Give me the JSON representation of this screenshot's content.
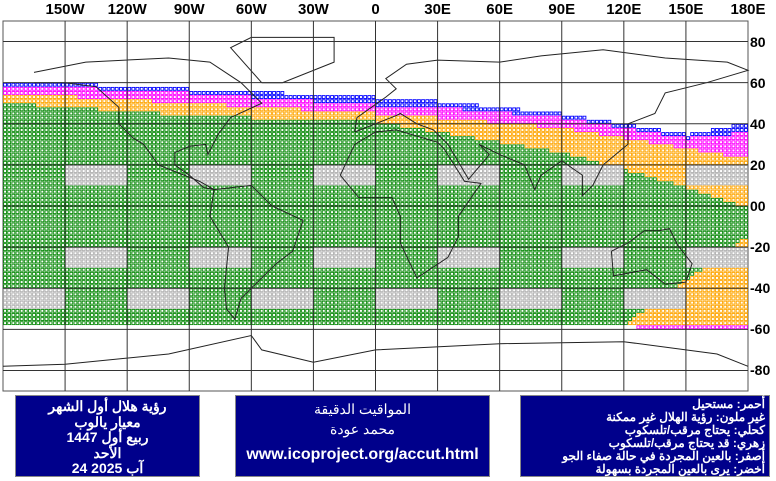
{
  "map": {
    "longitude_labels": [
      {
        "lon": -150,
        "text": "150W"
      },
      {
        "lon": -120,
        "text": "120W"
      },
      {
        "lon": -90,
        "text": "90W"
      },
      {
        "lon": -60,
        "text": "60W"
      },
      {
        "lon": -30,
        "text": "30W"
      },
      {
        "lon": 0,
        "text": "0"
      },
      {
        "lon": 30,
        "text": "30E"
      },
      {
        "lon": 60,
        "text": "60E"
      },
      {
        "lon": 90,
        "text": "90E"
      },
      {
        "lon": 120,
        "text": "120E"
      },
      {
        "lon": 150,
        "text": "150E"
      },
      {
        "lon": 180,
        "text": "180E"
      }
    ],
    "latitude_labels": [
      {
        "lat": 80,
        "text": "80"
      },
      {
        "lat": 60,
        "text": "60"
      },
      {
        "lat": 40,
        "text": "40"
      },
      {
        "lat": 20,
        "text": "20"
      },
      {
        "lat": 0,
        "text": "00"
      },
      {
        "lat": -20,
        "text": "-20"
      },
      {
        "lat": -40,
        "text": "-40"
      },
      {
        "lat": -60,
        "text": "-60"
      },
      {
        "lat": -80,
        "text": "-80"
      }
    ],
    "colors": {
      "green": "#0a8a0a",
      "orange": "#ffa500",
      "magenta": "#ff00ff",
      "blue": "#0000ff",
      "gray": "#b0b0b0",
      "grid": "#333333",
      "coast": "#222222"
    }
  },
  "info_left": {
    "line1": "رؤية هلال أول الشهر",
    "line2": "معيار يالوب",
    "line3": "ربيع أول 1447",
    "line4": "الأحد",
    "line5": "آب 2025 24"
  },
  "info_mid": {
    "line1": "المواقيت الدقيقة",
    "line2": "محمد عودة",
    "url": "www.icoproject.org/accut.html"
  },
  "legend": [
    "أحمر: مستحيل",
    "غير ملون: رؤية الهلال غير ممكنة",
    "كحلي: يحتاج مرقب/تلسكوب",
    "زهري: قد يحتاج مرقب/تلسكوب",
    "أصفر: بالعين المجردة في حالة صفاء الجو",
    "أخضر: يرى بالعين المجردة بسهولة"
  ]
}
